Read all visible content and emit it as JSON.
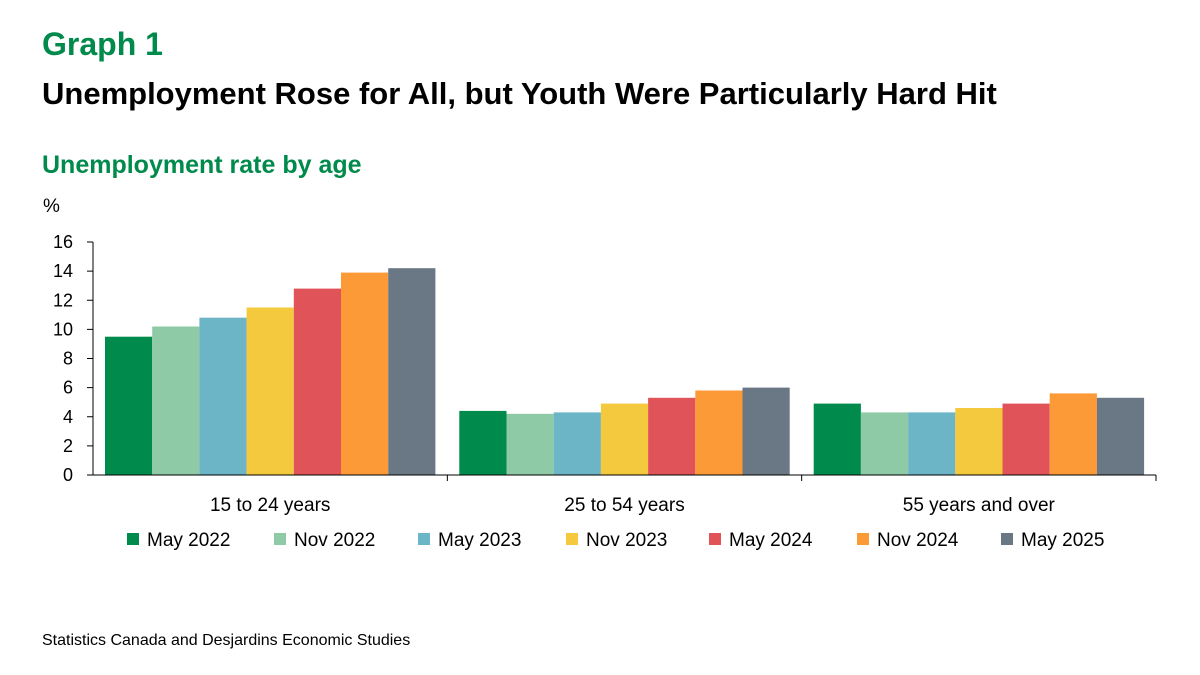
{
  "header": {
    "graph_label": "Graph 1",
    "headline": "Unemployment Rose for All, but Youth Were Particularly Hard Hit"
  },
  "chart_data": {
    "type": "bar",
    "title": "Unemployment rate by age",
    "ylabel": "%",
    "xlabel": "",
    "ylim": [
      0,
      16
    ],
    "yticks": [
      0,
      2,
      4,
      6,
      8,
      10,
      12,
      14,
      16
    ],
    "grid": false,
    "legend": "bottom",
    "categories": [
      "15 to 24 years",
      "25 to 54 years",
      "55 years and over"
    ],
    "series": [
      {
        "name": "May 2022",
        "color": "#008a4b",
        "values": [
          9.5,
          4.4,
          4.9
        ]
      },
      {
        "name": "Nov 2022",
        "color": "#8fcaa6",
        "values": [
          10.2,
          4.2,
          4.3
        ]
      },
      {
        "name": "May 2023",
        "color": "#6bb5c6",
        "values": [
          10.8,
          4.3,
          4.3
        ]
      },
      {
        "name": "Nov 2023",
        "color": "#f5c93d",
        "values": [
          11.5,
          4.9,
          4.6
        ]
      },
      {
        "name": "May 2024",
        "color": "#e05358",
        "values": [
          12.8,
          5.3,
          4.9
        ]
      },
      {
        "name": "Nov 2024",
        "color": "#fb9a36",
        "values": [
          13.9,
          5.8,
          5.6
        ]
      },
      {
        "name": "May 2025",
        "color": "#6a7784",
        "values": [
          14.2,
          6.0,
          5.3
        ]
      }
    ]
  },
  "footer": {
    "source": "Statistics Canada and Desjardins Economic Studies"
  }
}
